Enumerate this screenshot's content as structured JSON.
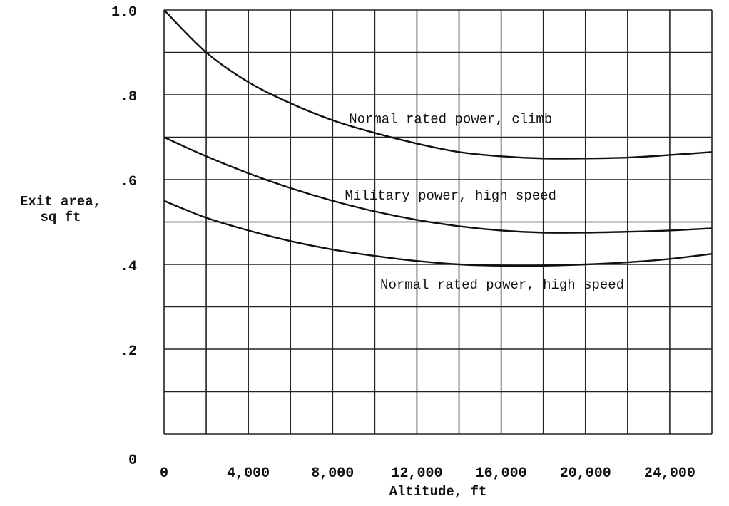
{
  "chart_data": {
    "type": "line",
    "xlabel": "Altitude, ft",
    "ylabel": [
      "Exit area,",
      "sq ft"
    ],
    "xlim": [
      0,
      26000
    ],
    "ylim": [
      0,
      1.0
    ],
    "grid": true,
    "x_ticks": [
      {
        "value": 0,
        "label": "0"
      },
      {
        "value": 4000,
        "label": "4,000"
      },
      {
        "value": 8000,
        "label": "8,000"
      },
      {
        "value": 12000,
        "label": "12,000"
      },
      {
        "value": 16000,
        "label": "16,000"
      },
      {
        "value": 20000,
        "label": "20,000"
      },
      {
        "value": 24000,
        "label": "24,000"
      }
    ],
    "y_ticks": [
      {
        "value": 0,
        "label": "0"
      },
      {
        "value": 0.2,
        "label": ".2"
      },
      {
        "value": 0.4,
        "label": ".4"
      },
      {
        "value": 0.6,
        "label": ".6"
      },
      {
        "value": 0.8,
        "label": ".8"
      },
      {
        "value": 1.0,
        "label": "1.0"
      }
    ],
    "grid_x": [
      0,
      2000,
      4000,
      6000,
      8000,
      10000,
      12000,
      14000,
      16000,
      18000,
      20000,
      22000,
      24000,
      26000
    ],
    "grid_y": [
      0,
      0.1,
      0.2,
      0.3,
      0.4,
      0.5,
      0.6,
      0.7,
      0.8,
      0.9,
      1.0
    ],
    "series": [
      {
        "name": "Normal rated power, climb",
        "x": [
          0,
          2000,
          4000,
          6000,
          8000,
          10000,
          12000,
          14000,
          16000,
          18000,
          20000,
          22000,
          24000,
          26000
        ],
        "y": [
          1.0,
          0.9,
          0.83,
          0.78,
          0.74,
          0.71,
          0.685,
          0.665,
          0.655,
          0.65,
          0.65,
          0.652,
          0.658,
          0.665
        ],
        "label_at": [
          13600,
          0.745
        ]
      },
      {
        "name": "Military power, high speed",
        "x": [
          0,
          2000,
          4000,
          6000,
          8000,
          10000,
          12000,
          14000,
          16000,
          18000,
          20000,
          22000,
          24000,
          26000
        ],
        "y": [
          0.7,
          0.655,
          0.615,
          0.58,
          0.55,
          0.525,
          0.505,
          0.49,
          0.48,
          0.475,
          0.475,
          0.477,
          0.48,
          0.485
        ],
        "label_at": [
          13600,
          0.565
        ]
      },
      {
        "name": "Normal rated power, high speed",
        "x": [
          0,
          2000,
          4000,
          6000,
          8000,
          10000,
          12000,
          14000,
          16000,
          18000,
          20000,
          22000,
          24000,
          26000
        ],
        "y": [
          0.55,
          0.51,
          0.48,
          0.455,
          0.435,
          0.42,
          0.408,
          0.4,
          0.397,
          0.397,
          0.4,
          0.405,
          0.413,
          0.425
        ],
        "label_at": [
          16050,
          0.355
        ]
      }
    ]
  }
}
